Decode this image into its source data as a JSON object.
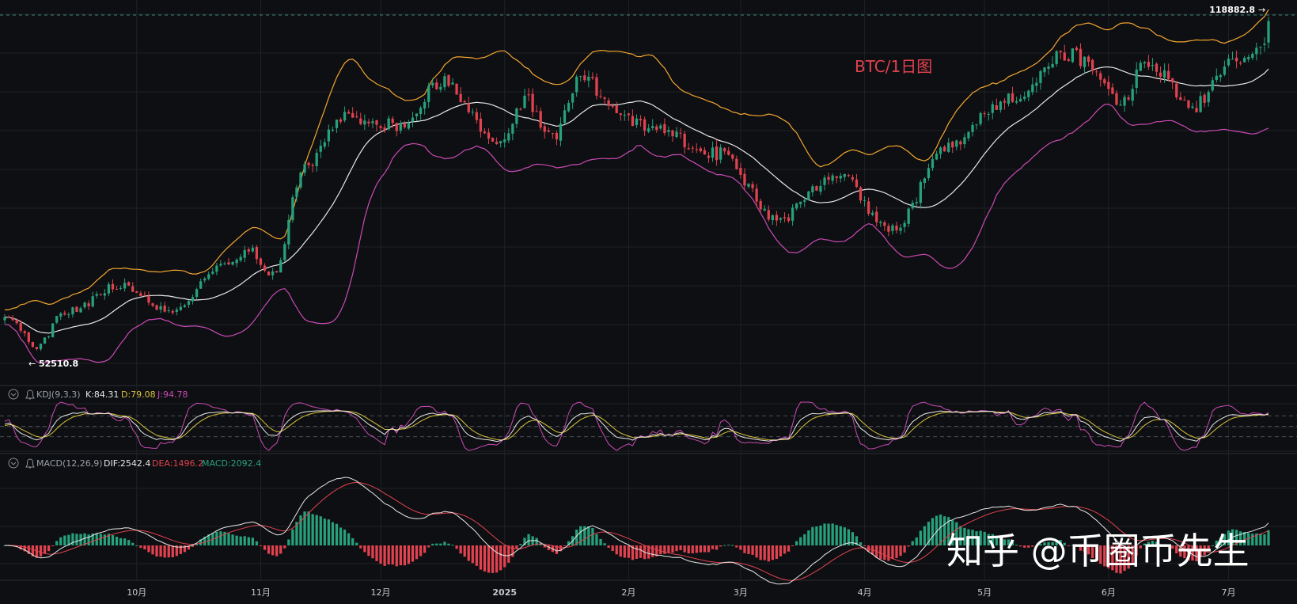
{
  "colors": {
    "background": "#0e0f12",
    "grid": "#1e2127",
    "up": "#26a17b",
    "down": "#e0424f",
    "boll_upper": "#f2a531",
    "boll_mid": "#e8e8e8",
    "boll_lower": "#c94ab5",
    "kdj_k": "#e8e8e8",
    "kdj_d": "#d9c23a",
    "kdj_j": "#c94ab5",
    "macd_dif": "#e8e8e8",
    "macd_dea": "#e0424f",
    "annotation": "#e0424f",
    "watermark": "#ffffff",
    "axis_text": "#c5c8ce"
  },
  "annotation": "BTC/1日图",
  "watermark": "知乎 @币圈币先生",
  "price_markers": {
    "high": {
      "value": "118882.8",
      "arrow": "→"
    },
    "low": {
      "value": "52510.8",
      "arrow": "←"
    }
  },
  "kdj": {
    "title": "KDJ(9,3,3)",
    "k_label": "K:84.31",
    "d_label": "D:79.08",
    "j_label": "J:94.78"
  },
  "macd": {
    "title": "MACD(12,26,9)",
    "dif_label": "DIF:2542.4",
    "dea_label": "DEA:1496.2",
    "macd_label": "MACD:2092.4"
  },
  "icons": [
    "collapse-chevron-icon",
    "alert-bell-icon"
  ],
  "chart_data": {
    "type": "candlestick",
    "symbol": "BTC",
    "interval": "1日",
    "x_ticks": [
      "10月",
      "11月",
      "12月",
      "2025",
      "2月",
      "3月",
      "4月",
      "5月",
      "6月",
      "7月"
    ],
    "x_range": [
      "2024-08-29",
      "2025-07-11"
    ],
    "y_range": [
      50000,
      121000
    ],
    "anchors": [
      {
        "date": "2024-08-29",
        "close": 59500
      },
      {
        "date": "2024-09-06",
        "close": 53900
      },
      {
        "date": "2024-09-13",
        "close": 60400
      },
      {
        "date": "2024-09-27",
        "close": 65800
      },
      {
        "date": "2024-10-10",
        "close": 60300
      },
      {
        "date": "2024-10-21",
        "close": 68900
      },
      {
        "date": "2024-10-29",
        "close": 72500
      },
      {
        "date": "2024-11-04",
        "close": 67800
      },
      {
        "date": "2024-11-12",
        "close": 88500
      },
      {
        "date": "2024-11-22",
        "close": 98500
      },
      {
        "date": "2024-12-05",
        "close": 97000
      },
      {
        "date": "2024-12-17",
        "close": 106000
      },
      {
        "date": "2024-12-30",
        "close": 92500
      },
      {
        "date": "2025-01-06",
        "close": 102000
      },
      {
        "date": "2025-01-13",
        "close": 94500
      },
      {
        "date": "2025-01-20",
        "close": 106000
      },
      {
        "date": "2025-02-03",
        "close": 97500
      },
      {
        "date": "2025-02-24",
        "close": 91500
      },
      {
        "date": "2025-03-10",
        "close": 78500
      },
      {
        "date": "2025-03-25",
        "close": 87500
      },
      {
        "date": "2025-04-08",
        "close": 76500
      },
      {
        "date": "2025-04-22",
        "close": 93500
      },
      {
        "date": "2025-05-08",
        "close": 103000
      },
      {
        "date": "2025-05-22",
        "close": 111000
      },
      {
        "date": "2025-06-05",
        "close": 101500
      },
      {
        "date": "2025-06-10",
        "close": 110000
      },
      {
        "date": "2025-06-22",
        "close": 100800
      },
      {
        "date": "2025-07-03",
        "close": 109500
      },
      {
        "date": "2025-07-09",
        "close": 111500
      },
      {
        "date": "2025-07-11",
        "close": 117500
      }
    ],
    "latest": {
      "k": 84.31,
      "d": 79.08,
      "j": 94.78,
      "dif": 2542.4,
      "dea": 1496.2,
      "macd": 2092.4
    },
    "indicators": [
      "BOLL",
      "KDJ(9,3,3)",
      "MACD(12,26,9)"
    ]
  }
}
